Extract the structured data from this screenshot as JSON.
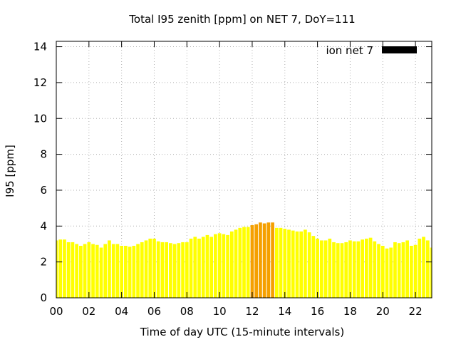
{
  "chart_data": {
    "type": "bar",
    "title": "Total I95 zenith [ppm] on NET 7, DoY=111",
    "xlabel": "Time of day UTC (15-minute intervals)",
    "ylabel": "I95 [ppm]",
    "x_tick_labels": [
      "00",
      "02",
      "04",
      "06",
      "08",
      "10",
      "12",
      "14",
      "16",
      "18",
      "20",
      "22"
    ],
    "y_tick_labels": [
      "0",
      "2",
      "4",
      "6",
      "8",
      "10",
      "12",
      "14"
    ],
    "xlim": [
      0,
      23
    ],
    "ylim": [
      0,
      14.3
    ],
    "grid": true,
    "legend": {
      "label": "ion net 7",
      "position": "top-right",
      "color": "#000000"
    },
    "colors": {
      "normal": "#ffff00",
      "elevated": "#f5a000",
      "threshold": 4.0
    },
    "series": [
      {
        "name": "ion net 7",
        "bin_hours": 0.25,
        "values": [
          3.2,
          3.25,
          3.25,
          3.1,
          3.1,
          3.0,
          2.9,
          3.0,
          3.1,
          3.0,
          2.95,
          2.8,
          3.0,
          3.2,
          3.0,
          3.0,
          2.9,
          2.9,
          2.85,
          2.9,
          3.0,
          3.1,
          3.2,
          3.3,
          3.3,
          3.15,
          3.1,
          3.1,
          3.05,
          3.0,
          3.05,
          3.1,
          3.1,
          3.3,
          3.4,
          3.3,
          3.4,
          3.5,
          3.4,
          3.55,
          3.6,
          3.55,
          3.5,
          3.7,
          3.8,
          3.9,
          3.95,
          3.95,
          4.05,
          4.1,
          4.2,
          4.15,
          4.2,
          4.2,
          3.9,
          3.9,
          3.85,
          3.8,
          3.75,
          3.7,
          3.7,
          3.8,
          3.65,
          3.45,
          3.3,
          3.2,
          3.2,
          3.3,
          3.1,
          3.05,
          3.05,
          3.1,
          3.2,
          3.15,
          3.15,
          3.25,
          3.3,
          3.35,
          3.15,
          3.0,
          2.9,
          2.75,
          2.8,
          3.1,
          3.05,
          3.1,
          3.2,
          2.9,
          2.95,
          3.3,
          3.4,
          3.2,
          2.8,
          2.85
        ]
      }
    ]
  }
}
